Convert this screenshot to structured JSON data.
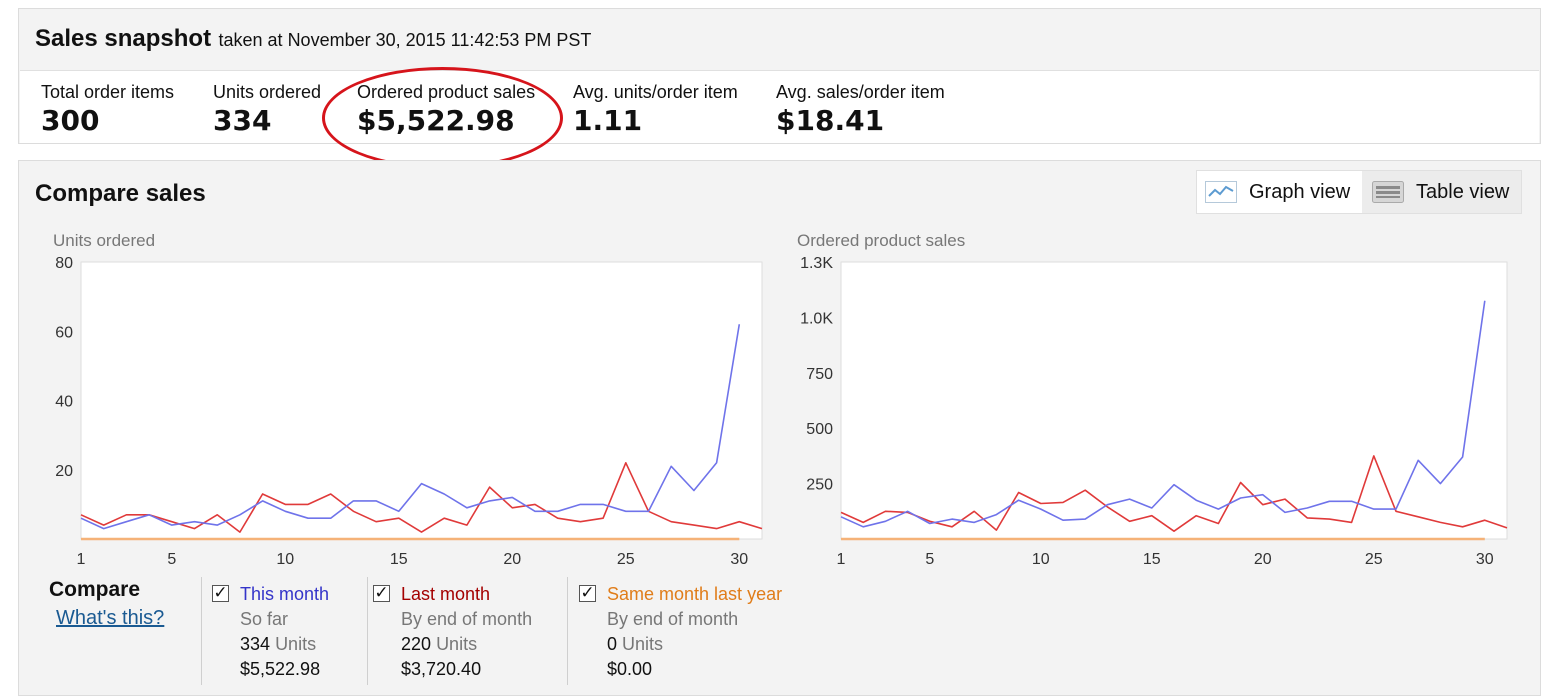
{
  "snapshot": {
    "title": "Sales snapshot",
    "subtitle": "taken at November 30, 2015 11:42:53 PM PST",
    "metrics": [
      {
        "label": "Total order items",
        "value": "300"
      },
      {
        "label": "Units ordered",
        "value": "334"
      },
      {
        "label": "Ordered product sales",
        "value": "$5,522.98"
      },
      {
        "label": "Avg. units/order item",
        "value": "1.11"
      },
      {
        "label": "Avg. sales/order item",
        "value": "$18.41"
      }
    ]
  },
  "compare": {
    "title": "Compare sales",
    "graph_view_label": "Graph view",
    "table_view_label": "Table view",
    "graph_icon": "line-chart-icon",
    "table_icon": "keyboard-table-icon",
    "compare_label": "Compare",
    "whats_this": "What's this?",
    "legend": [
      {
        "name": "This month",
        "sub": "So far",
        "units": "334",
        "units_word": "Units",
        "sales": "$5,522.98",
        "color": "#3434c9",
        "checked": true
      },
      {
        "name": "Last month",
        "sub": "By end of month",
        "units": "220",
        "units_word": "Units",
        "sales": "$3,720.40",
        "color": "#a40000",
        "checked": true
      },
      {
        "name": "Same month last year",
        "sub": "By end of month",
        "units": "0",
        "units_word": "Units",
        "sales": "$0.00",
        "color": "#e07d1a",
        "checked": true
      }
    ]
  },
  "colors": {
    "this_month": "#6f73ea",
    "last_month": "#e03a3a",
    "last_year": "#f5b278"
  },
  "chart_data": [
    {
      "type": "line",
      "title": "Units ordered",
      "ylim": [
        0,
        80
      ],
      "yticks": [
        20,
        40,
        60,
        80
      ],
      "xticks": [
        1,
        5,
        10,
        15,
        20,
        25,
        30
      ],
      "xlim": [
        1,
        31
      ],
      "grid": false,
      "series": [
        {
          "name": "This month",
          "color": "#6f73ea",
          "x": [
            1,
            2,
            3,
            4,
            5,
            6,
            7,
            8,
            9,
            10,
            11,
            12,
            13,
            14,
            15,
            16,
            17,
            18,
            19,
            20,
            21,
            22,
            23,
            24,
            25,
            26,
            27,
            28,
            29,
            30
          ],
          "values": [
            6,
            3,
            5,
            7,
            4,
            5,
            4,
            7,
            11,
            8,
            6,
            6,
            11,
            11,
            8,
            16,
            13,
            9,
            11,
            12,
            8,
            8,
            10,
            10,
            8,
            8,
            21,
            14,
            22,
            62
          ]
        },
        {
          "name": "Last month",
          "color": "#e03a3a",
          "x": [
            1,
            2,
            3,
            4,
            5,
            6,
            7,
            8,
            9,
            10,
            11,
            12,
            13,
            14,
            15,
            16,
            17,
            18,
            19,
            20,
            21,
            22,
            23,
            24,
            25,
            26,
            27,
            28,
            29,
            30,
            31
          ],
          "values": [
            7,
            4,
            7,
            7,
            5,
            3,
            7,
            2,
            13,
            10,
            10,
            13,
            8,
            5,
            6,
            2,
            6,
            4,
            15,
            9,
            10,
            6,
            5,
            6,
            22,
            8,
            5,
            4,
            3,
            5,
            3
          ]
        },
        {
          "name": "Same month last year",
          "color": "#f5b278",
          "x": [
            1,
            30
          ],
          "values": [
            0,
            0
          ]
        }
      ]
    },
    {
      "type": "line",
      "title": "Ordered product sales",
      "ylim": [
        0,
        1250
      ],
      "yticks": [
        250,
        500,
        750,
        "1.0K",
        "1.3K"
      ],
      "ytick_values": [
        250,
        500,
        750,
        1000,
        1250
      ],
      "xticks": [
        1,
        5,
        10,
        15,
        20,
        25,
        30
      ],
      "xlim": [
        1,
        31
      ],
      "grid": false,
      "series": [
        {
          "name": "This month",
          "color": "#6f73ea",
          "x": [
            1,
            2,
            3,
            4,
            5,
            6,
            7,
            8,
            9,
            10,
            11,
            12,
            13,
            14,
            15,
            16,
            17,
            18,
            19,
            20,
            21,
            22,
            23,
            24,
            25,
            26,
            27,
            28,
            29,
            30
          ],
          "values": [
            100,
            55,
            80,
            125,
            70,
            90,
            75,
            110,
            175,
            135,
            85,
            90,
            155,
            180,
            140,
            245,
            175,
            135,
            185,
            200,
            120,
            140,
            170,
            170,
            135,
            135,
            355,
            250,
            370,
            1075
          ]
        },
        {
          "name": "Last month",
          "color": "#e03a3a",
          "x": [
            1,
            2,
            3,
            4,
            5,
            6,
            7,
            8,
            9,
            10,
            11,
            12,
            13,
            14,
            15,
            16,
            17,
            18,
            19,
            20,
            21,
            22,
            23,
            24,
            25,
            26,
            27,
            28,
            29,
            30,
            31
          ],
          "values": [
            120,
            75,
            125,
            120,
            80,
            55,
            125,
            40,
            210,
            160,
            165,
            220,
            145,
            80,
            105,
            35,
            105,
            70,
            255,
            155,
            180,
            95,
            90,
            75,
            375,
            125,
            100,
            75,
            55,
            85,
            50
          ]
        },
        {
          "name": "Same month last year",
          "color": "#f5b278",
          "x": [
            1,
            30
          ],
          "values": [
            0,
            0
          ]
        }
      ]
    }
  ]
}
